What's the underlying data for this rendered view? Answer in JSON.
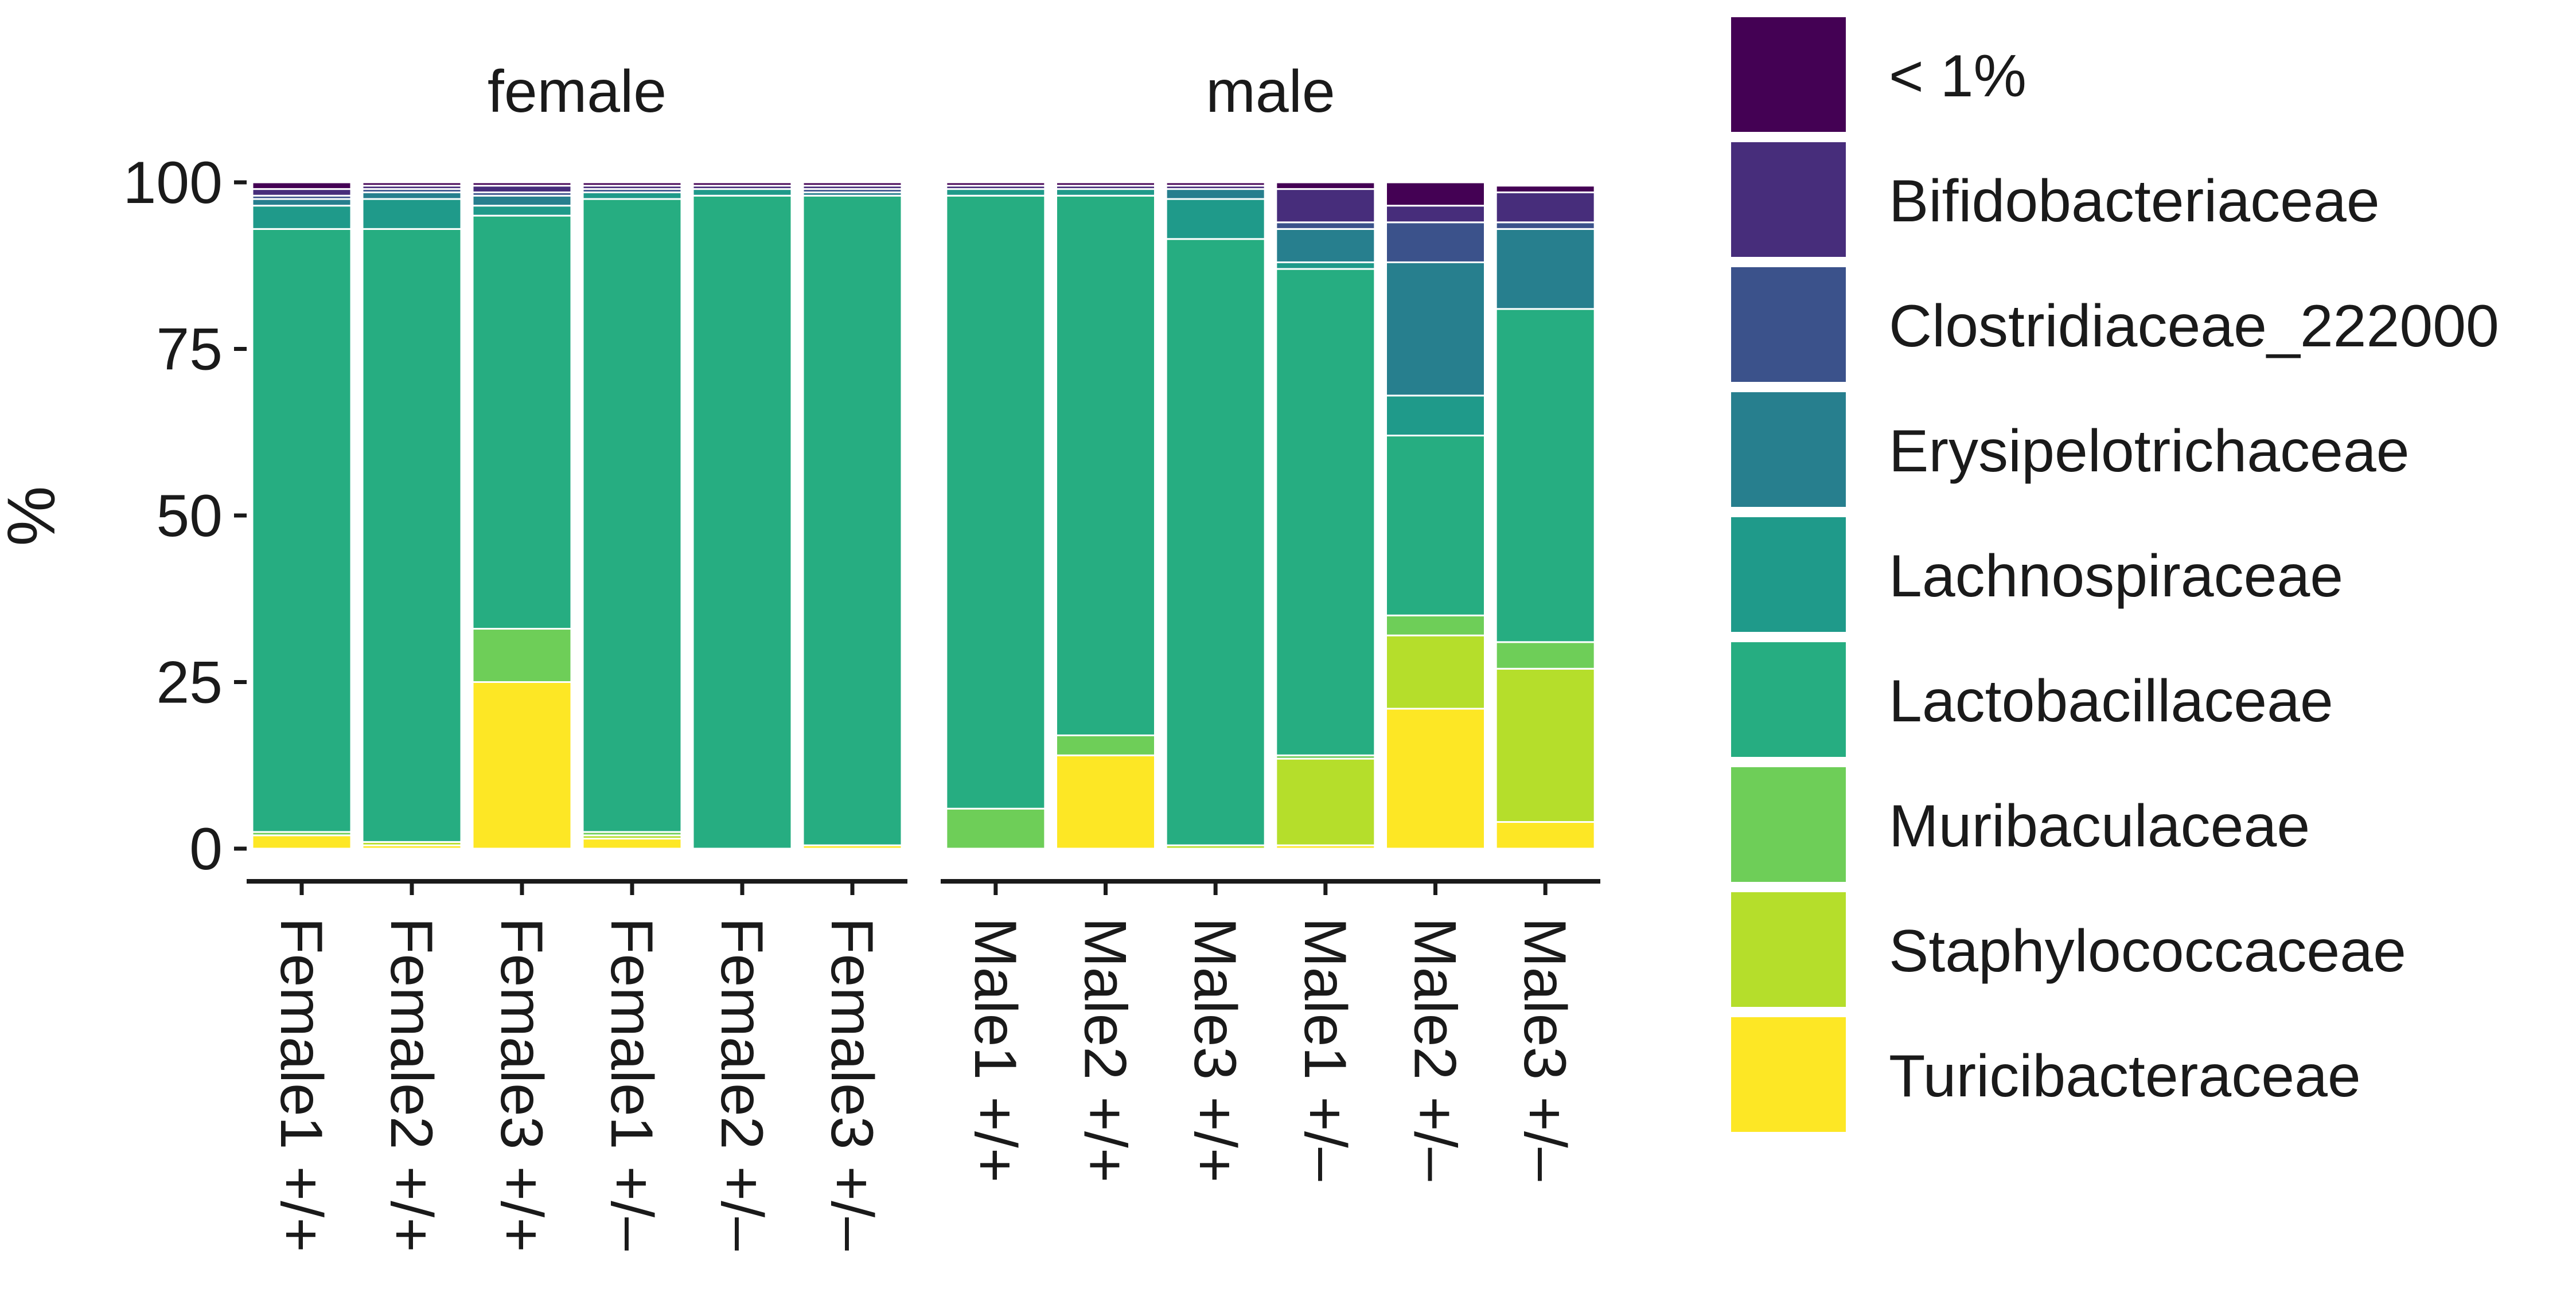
{
  "chart_data": {
    "type": "bar",
    "stacked": true,
    "ylabel": "%",
    "ylim": [
      0,
      100
    ],
    "y_ticks": [
      0,
      25,
      50,
      75,
      100
    ],
    "grid": false,
    "legend_position": "right",
    "panels": [
      {
        "title": "female",
        "categories": [
          "Female1 +/+",
          "Female2 +/+",
          "Female3 +/+",
          "Female1 +/–",
          "Female2 +/–",
          "Female3 +/–"
        ]
      },
      {
        "title": "male",
        "categories": [
          "Male1 +/+",
          "Male2 +/+",
          "Male3 +/+",
          "Male1 +/–",
          "Male2 +/–",
          "Male3 +/–"
        ]
      }
    ],
    "series": [
      {
        "name": "Turicibacteraceae",
        "color": "#fde725",
        "values": [
          2.0,
          0.5,
          25.0,
          1.5,
          0.0,
          0.5,
          0.0,
          14.0,
          0.0,
          0.5,
          21.0,
          4.0
        ]
      },
      {
        "name": "Staphylococcaceae",
        "color": "#b5de2b",
        "values": [
          0.0,
          0.5,
          0.0,
          0.5,
          0.0,
          0.0,
          0.0,
          0.0,
          0.5,
          13.0,
          11.0,
          23.0
        ]
      },
      {
        "name": "Muribaculaceae",
        "color": "#6ece58",
        "values": [
          0.5,
          0.0,
          8.0,
          0.5,
          0.0,
          0.0,
          6.0,
          3.0,
          0.0,
          0.5,
          3.0,
          4.0
        ]
      },
      {
        "name": "Lactobacillaceae",
        "color": "#26ad81",
        "values": [
          90.5,
          92.0,
          62.0,
          95.0,
          98.0,
          97.5,
          92.0,
          81.0,
          91.0,
          73.0,
          27.0,
          50.0
        ]
      },
      {
        "name": "Lachnospiraceae",
        "color": "#1f9a8a",
        "values": [
          3.5,
          4.5,
          1.5,
          1.0,
          1.0,
          0.0,
          1.0,
          1.0,
          6.0,
          1.0,
          6.0,
          0.0
        ]
      },
      {
        "name": "Erysipelotrichaceae",
        "color": "#277f8e",
        "values": [
          1.0,
          1.0,
          1.5,
          0.0,
          0.0,
          0.5,
          0.0,
          0.0,
          1.5,
          5.0,
          20.0,
          12.0
        ]
      },
      {
        "name": "Clostridiaceae_222000",
        "color": "#3b528b",
        "values": [
          0.5,
          0.5,
          0.5,
          0.5,
          0.0,
          0.5,
          0.0,
          0.0,
          0.0,
          1.0,
          6.0,
          1.0
        ]
      },
      {
        "name": "Bifidobacteriaceae",
        "color": "#472d7b",
        "values": [
          1.0,
          0.5,
          1.0,
          0.5,
          0.5,
          0.5,
          0.5,
          0.5,
          0.5,
          5.0,
          2.5,
          4.5
        ]
      },
      {
        "name": "< 1%",
        "color": "#440154",
        "values": [
          1.0,
          0.5,
          0.5,
          0.5,
          0.5,
          0.5,
          0.5,
          0.5,
          0.5,
          1.0,
          3.5,
          1.0
        ]
      }
    ],
    "legend_order": [
      "< 1%",
      "Bifidobacteriaceae",
      "Clostridiaceae_222000",
      "Erysipelotrichaceae",
      "Lachnospiraceae",
      "Lactobacillaceae",
      "Muribaculaceae",
      "Staphylococcaceae",
      "Turicibacteraceae"
    ]
  }
}
